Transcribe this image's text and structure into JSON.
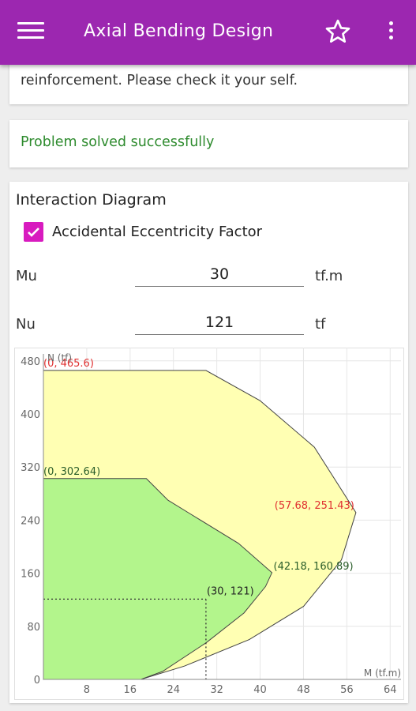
{
  "appbar": {
    "title": "Axial Bending Design",
    "menu_icon": "hamburger-menu-icon",
    "star_icon": "star-outline-icon",
    "more_icon": "more-vert-icon",
    "color": "#9c27b0"
  },
  "notice": {
    "text": "reinforcement. Please check it your self."
  },
  "status": {
    "text": "Problem solved successfully",
    "color": "#2e8b2e"
  },
  "interaction": {
    "title": "Interaction Diagram",
    "accidental_checkbox": {
      "label": "Accidental Eccentricity Factor",
      "checked": true,
      "color": "#d81bbf"
    },
    "mu": {
      "label": "Mu",
      "value": "30",
      "unit": "tf.m"
    },
    "nu": {
      "label": "Nu",
      "value": "121",
      "unit": "tf"
    }
  },
  "chart_data": {
    "type": "area",
    "xlabel": "M (tf.m)",
    "ylabel": "N (tf)",
    "xlim": [
      0,
      66
    ],
    "ylim": [
      0,
      500
    ],
    "xticks": [
      8,
      16,
      24,
      32,
      40,
      48,
      56,
      64
    ],
    "yticks": [
      0,
      80,
      160,
      240,
      320,
      400,
      480
    ],
    "grid": true,
    "series": [
      {
        "fill": "#ffffb3",
        "points": [
          [
            0,
            465.6
          ],
          [
            30,
            465.6
          ],
          [
            40,
            420
          ],
          [
            50,
            350
          ],
          [
            57.68,
            251.43
          ],
          [
            55,
            180
          ],
          [
            48,
            110
          ],
          [
            38,
            60
          ],
          [
            26,
            20
          ],
          [
            18,
            0
          ],
          [
            0,
            0
          ]
        ]
      },
      {
        "fill": "#b3f58c",
        "points": [
          [
            0,
            302.64
          ],
          [
            19,
            302.64
          ],
          [
            23,
            270
          ],
          [
            27,
            250
          ],
          [
            36,
            205
          ],
          [
            42.18,
            160.89
          ],
          [
            41,
            140
          ],
          [
            37,
            100
          ],
          [
            30,
            55
          ],
          [
            22,
            12
          ],
          [
            18,
            0
          ],
          [
            0,
            0
          ]
        ]
      }
    ],
    "annotations": [
      {
        "text": "(0, 465.6)",
        "x": 0,
        "y": 465.6,
        "color": "#e03030"
      },
      {
        "text": "(0, 302.64)",
        "x": 0,
        "y": 302.64,
        "color": "#2a5d2a"
      },
      {
        "text": "(57.68, 251.43)",
        "x": 57.68,
        "y": 251.43,
        "color": "#e03030"
      },
      {
        "text": "(42.18, 160.89)",
        "x": 42.18,
        "y": 160.89,
        "color": "#2a5d2a"
      },
      {
        "text": "(30, 121)",
        "x": 30,
        "y": 121,
        "color": "#222222"
      }
    ],
    "design_point": {
      "x": 30,
      "y": 121
    }
  }
}
